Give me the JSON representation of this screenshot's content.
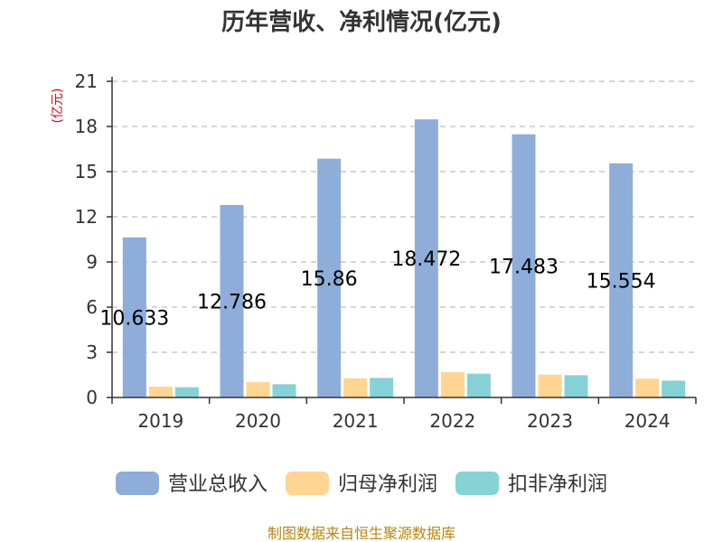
{
  "chart_data": {
    "type": "bar",
    "title": "历年营收、净利情况(亿元)",
    "ylabel": "(亿元)",
    "categories": [
      "2019",
      "2020",
      "2021",
      "2022",
      "2023",
      "2024"
    ],
    "yticks": [
      "0",
      "3",
      "6",
      "9",
      "12",
      "15",
      "18",
      "21"
    ],
    "ylim": [
      0,
      21
    ],
    "grid": true,
    "legend_position": "bottom",
    "series": [
      {
        "name": "营业总收入",
        "color": "#8eadd9",
        "values": [
          10.633,
          12.786,
          15.86,
          18.472,
          17.483,
          15.554
        ],
        "labels": [
          "10.633",
          "12.786",
          "15.86",
          "18.472",
          "17.483",
          "15.554"
        ]
      },
      {
        "name": "归母净利润",
        "color": "#ffd591",
        "values": [
          0.72,
          1.02,
          1.28,
          1.68,
          1.52,
          1.25
        ]
      },
      {
        "name": "扣非净利润",
        "color": "#85d3d6",
        "values": [
          0.68,
          0.88,
          1.3,
          1.58,
          1.48,
          1.12
        ]
      }
    ],
    "source": "制图数据来自恒生聚源数据库"
  }
}
